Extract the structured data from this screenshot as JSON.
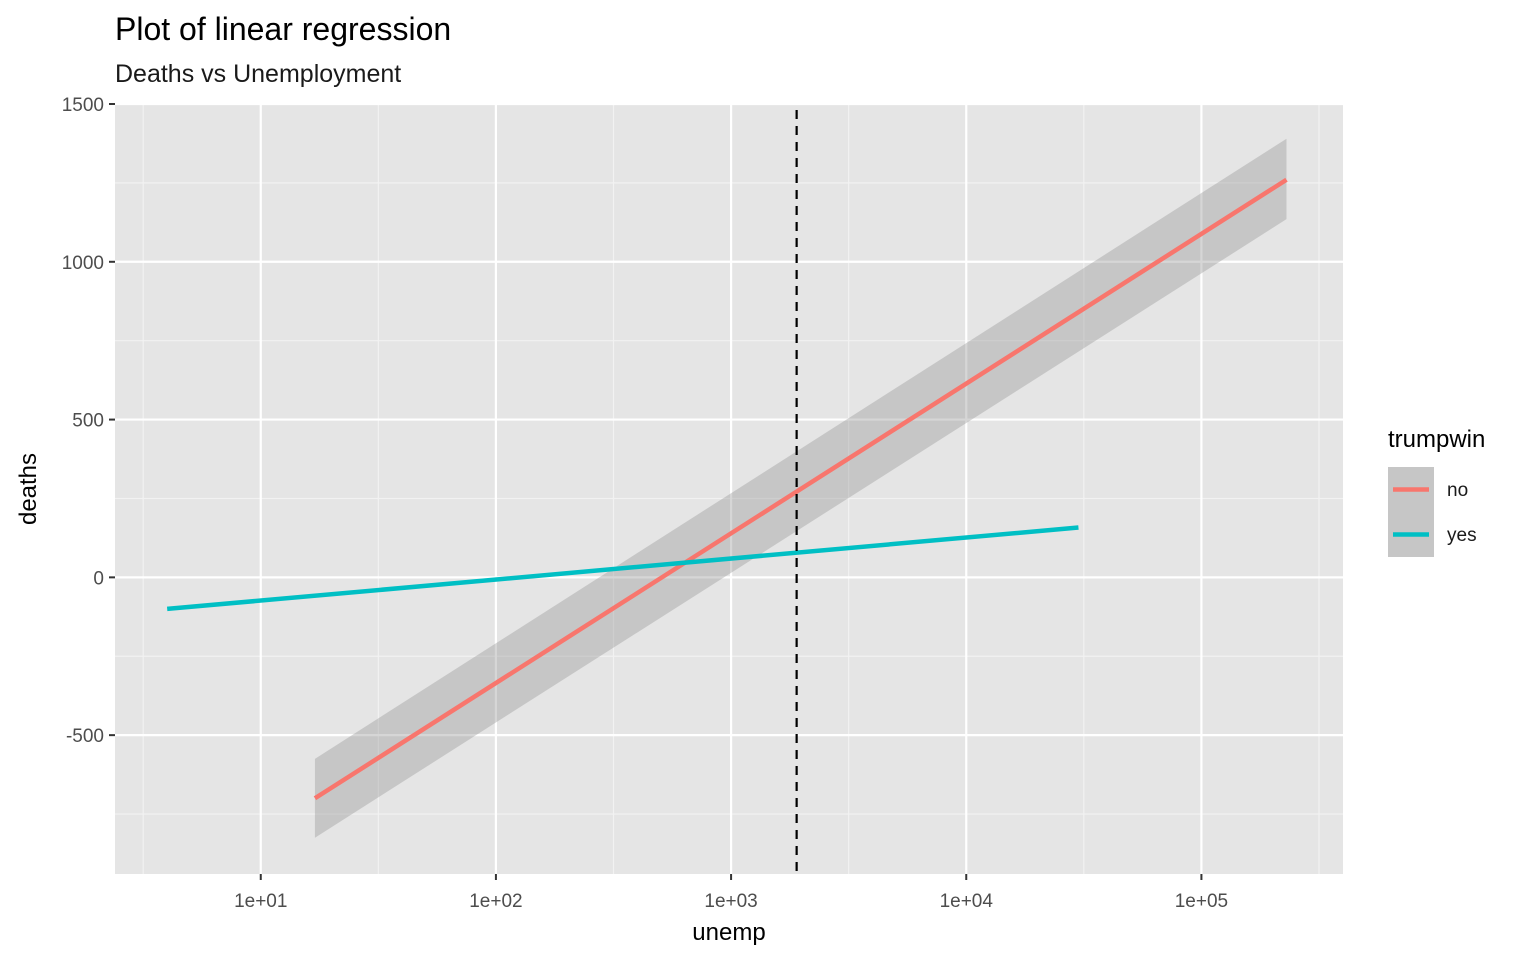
{
  "chart_data": {
    "type": "line",
    "title": "Plot of linear regression",
    "subtitle": "Deaths vs Unemployment",
    "xlabel": "unemp",
    "ylabel": "deaths",
    "x_scale": "log10",
    "xlim": [
      2.4,
      400000
    ],
    "ylim": [
      -940,
      1500
    ],
    "x_ticks": [
      10,
      100,
      1000,
      10000,
      100000
    ],
    "x_tick_labels": [
      "1e+01",
      "1e+02",
      "1e+03",
      "1e+04",
      "1e+05"
    ],
    "y_ticks": [
      -500,
      0,
      500,
      1000,
      1500
    ],
    "y_tick_labels": [
      "-500",
      "0",
      "500",
      "1000",
      "1500"
    ],
    "grid": true,
    "legend": {
      "title": "trumpwin",
      "position": "right"
    },
    "series": [
      {
        "name": "no",
        "color": "#F8766D",
        "x": [
          17,
          230000
        ],
        "y": [
          -700,
          1260
        ],
        "ci_lower": [
          -825,
          1135
        ],
        "ci_upper": [
          -575,
          1390
        ]
      },
      {
        "name": "yes",
        "color": "#00BFC4",
        "x": [
          4,
          30000
        ],
        "y": [
          -100,
          158
        ]
      }
    ],
    "vline": {
      "x": 1900,
      "style": "dashed",
      "color": "#000000"
    }
  }
}
